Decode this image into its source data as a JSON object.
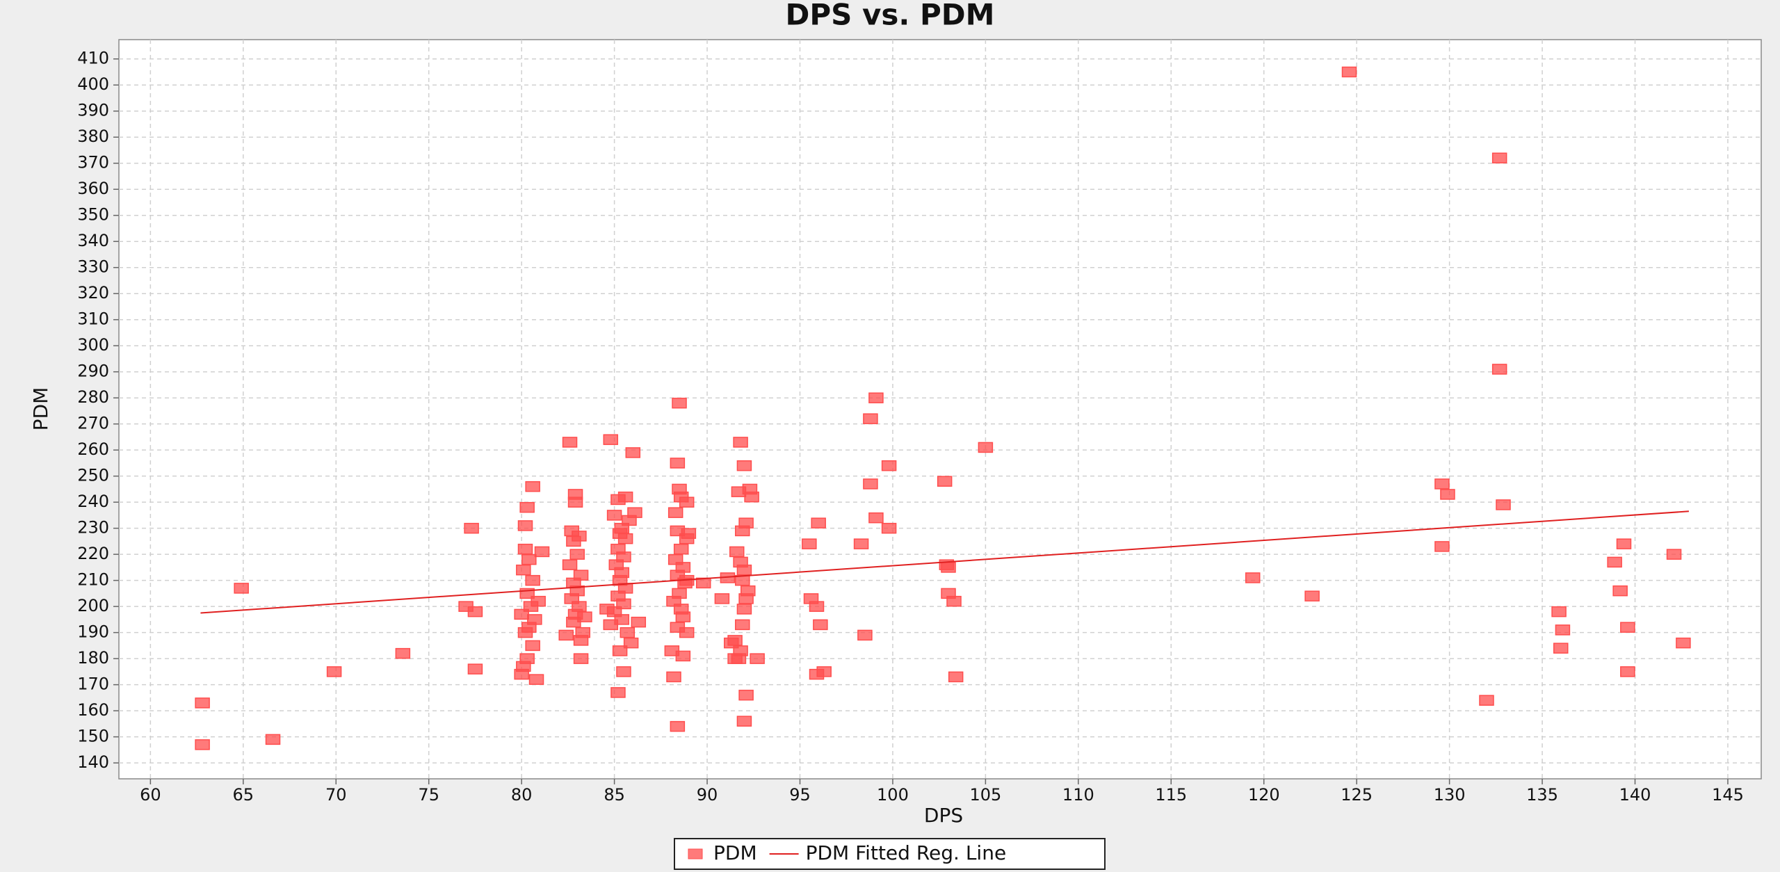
{
  "chart_data": {
    "type": "scatter",
    "title": "DPS vs. PDM",
    "x_label": "DPS",
    "y_label": "PDM",
    "xlim": [
      58.3,
      146.8
    ],
    "ylim": [
      133.9,
      417.4
    ],
    "xticks": [
      60,
      65,
      70,
      75,
      80,
      85,
      90,
      95,
      100,
      105,
      110,
      115,
      120,
      125,
      130,
      135,
      140,
      145
    ],
    "yticks": [
      140,
      150,
      160,
      170,
      180,
      190,
      200,
      210,
      220,
      230,
      240,
      250,
      260,
      270,
      280,
      290,
      300,
      310,
      320,
      330,
      340,
      350,
      360,
      370,
      380,
      390,
      400,
      410
    ],
    "grid": true,
    "legend": "bottom",
    "series": [
      {
        "name": "PDM",
        "color": "#ff4d4d",
        "type": "scatter",
        "x": [
          62.8,
          62.8,
          64.9,
          66.6,
          69.9,
          73.6,
          77.0,
          77.3,
          77.5,
          77.5,
          80.2,
          80.4,
          80.1,
          80.6,
          80.3,
          80.5,
          80.0,
          80.7,
          80.4,
          80.2,
          80.6,
          80.3,
          80.1,
          80.0,
          80.3,
          80.2,
          80.6,
          80.8,
          80.9,
          81.1,
          82.6,
          82.9,
          82.9,
          82.7,
          83.1,
          82.8,
          83.0,
          82.6,
          83.2,
          82.8,
          83.0,
          82.7,
          83.1,
          82.9,
          82.8,
          83.3,
          83.2,
          83.2,
          83.4,
          82.4,
          84.8,
          85.6,
          85.2,
          85.0,
          85.8,
          85.4,
          85.3,
          85.6,
          85.2,
          85.5,
          85.1,
          85.4,
          85.3,
          85.6,
          85.2,
          85.5,
          85.0,
          85.4,
          84.8,
          85.7,
          85.9,
          85.3,
          85.5,
          85.2,
          86.0,
          86.1,
          86.3,
          84.6,
          88.5,
          88.4,
          88.5,
          88.6,
          88.9,
          88.3,
          88.4,
          88.9,
          88.6,
          88.3,
          88.7,
          88.4,
          88.8,
          88.5,
          88.2,
          88.6,
          88.7,
          88.4,
          88.9,
          88.1,
          88.7,
          88.2,
          88.4,
          88.9,
          89.0,
          91.8,
          92.0,
          91.7,
          92.4,
          92.1,
          91.9,
          91.6,
          91.8,
          92.0,
          91.9,
          92.2,
          92.1,
          92.0,
          91.9,
          91.5,
          91.8,
          91.7,
          92.1,
          92.0,
          92.3,
          89.8,
          90.8,
          91.1,
          91.3,
          91.5,
          92.7,
          95.5,
          95.6,
          95.9,
          96.0,
          96.1,
          95.9,
          96.3,
          98.3,
          98.5,
          98.8,
          98.8,
          99.1,
          99.1,
          99.8,
          99.8,
          102.8,
          102.9,
          103.0,
          103.0,
          103.3,
          103.4,
          105.0,
          119.4,
          122.6,
          124.6,
          129.6,
          129.6,
          129.9,
          132.0,
          132.7,
          132.7,
          132.9,
          135.9,
          136.1,
          136.0,
          138.9,
          139.2,
          139.4,
          139.6,
          139.6,
          142.1,
          142.6
        ],
        "values": [
          163,
          147,
          207,
          149,
          175,
          182,
          200,
          230,
          198,
          176,
          222,
          218,
          214,
          210,
          205,
          200,
          197,
          195,
          192,
          190,
          185,
          180,
          177,
          174,
          238,
          231,
          246,
          172,
          202,
          221,
          263,
          243,
          240,
          229,
          227,
          225,
          220,
          216,
          212,
          209,
          206,
          203,
          200,
          197,
          194,
          190,
          187,
          180,
          196,
          189,
          264,
          242,
          241,
          235,
          233,
          230,
          228,
          226,
          222,
          219,
          216,
          213,
          210,
          207,
          204,
          201,
          198,
          195,
          193,
          190,
          186,
          183,
          175,
          167,
          259,
          236,
          194,
          199,
          278,
          255,
          245,
          242,
          240,
          236,
          229,
          226,
          222,
          218,
          215,
          212,
          209,
          205,
          202,
          199,
          196,
          192,
          190,
          183,
          181,
          173,
          154,
          210,
          228,
          263,
          254,
          244,
          242,
          232,
          229,
          221,
          217,
          214,
          210,
          206,
          203,
          199,
          193,
          187,
          183,
          180,
          166,
          156,
          245,
          209,
          203,
          211,
          186,
          180,
          180,
          224,
          203,
          200,
          232,
          193,
          174,
          175,
          224,
          189,
          272,
          247,
          280,
          234,
          254,
          230,
          248,
          216,
          215,
          205,
          202,
          173,
          261,
          211,
          204,
          405,
          247,
          223,
          243,
          164,
          291,
          372,
          239,
          198,
          191,
          184,
          217,
          206,
          224,
          192,
          175,
          220,
          186
        ]
      },
      {
        "name": "PDM Fitted Reg. Line",
        "color": "#e02020",
        "type": "line",
        "x": [
          62.7,
          142.9
        ],
        "values": [
          197.5,
          236.5
        ]
      }
    ]
  }
}
